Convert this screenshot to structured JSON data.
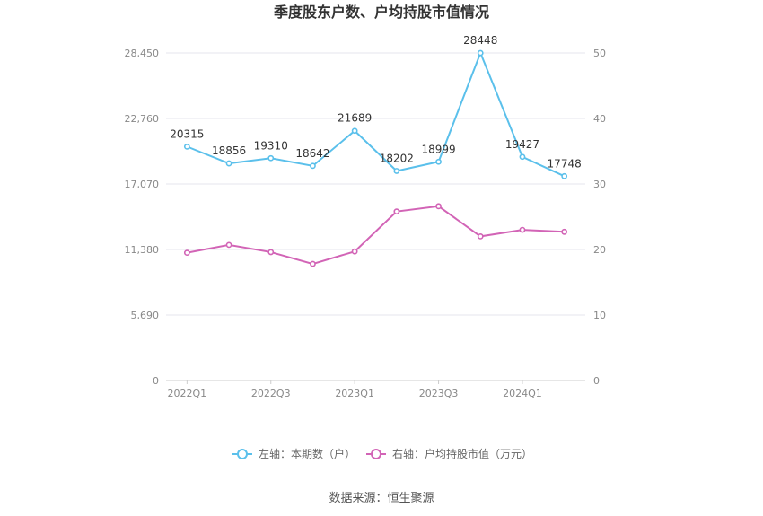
{
  "chart_data": {
    "type": "line",
    "title": "季度股东户数、户均持股市值情况",
    "categories": [
      "2022Q1",
      "2022Q2",
      "2022Q3",
      "2022Q4",
      "2023Q1",
      "2023Q2",
      "2023Q3",
      "2023Q4",
      "2024Q1",
      "2024Q2"
    ],
    "x_tick_labels": [
      "2022Q1",
      "2022Q3",
      "2023Q1",
      "2023Q3",
      "2024Q1"
    ],
    "left_axis": {
      "ylim": [
        0,
        28450
      ],
      "ticks": [
        "0",
        "5,690",
        "11,380",
        "17,070",
        "22,760",
        "28,450"
      ],
      "tick_values": [
        0,
        5690,
        11380,
        17070,
        22760,
        28450
      ]
    },
    "right_axis": {
      "ylim": [
        0,
        50
      ],
      "ticks": [
        "0",
        "10",
        "20",
        "30",
        "40",
        "50"
      ],
      "tick_values": [
        0,
        10,
        20,
        30,
        40,
        50
      ]
    },
    "series": [
      {
        "name": "左轴：本期数（户）",
        "axis": "left",
        "color": "#5bc0eb",
        "values": [
          20315,
          18856,
          19310,
          18642,
          21689,
          18202,
          18999,
          28448,
          19427,
          17748
        ],
        "labels": [
          "20315",
          "18856",
          "19310",
          "18642",
          "21689",
          "18202",
          "18999",
          "28448",
          "19427",
          "17748"
        ]
      },
      {
        "name": "右轴：户均持股市值（万元）",
        "axis": "right",
        "color": "#d264b6",
        "values": [
          19.5,
          20.7,
          19.6,
          17.8,
          19.7,
          25.8,
          26.6,
          22.0,
          23.0,
          22.7
        ]
      }
    ],
    "grid": true,
    "legend_position": "bottom"
  },
  "source": "数据来源：恒生聚源"
}
